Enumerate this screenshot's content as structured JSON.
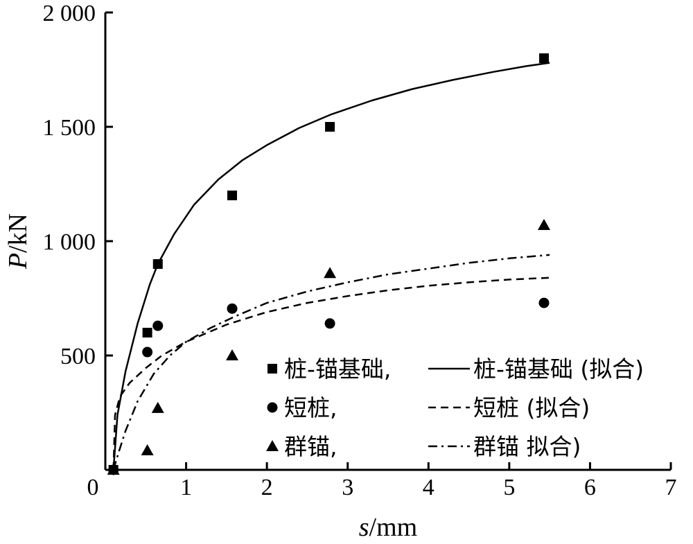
{
  "chart_data": {
    "type": "scatter",
    "xlabel": {
      "var": "s",
      "unit": "/mm"
    },
    "ylabel": {
      "var": "P",
      "unit": "/kN"
    },
    "xlim": [
      0,
      7
    ],
    "ylim": [
      0,
      2000
    ],
    "x_ticks": [
      0,
      1,
      2,
      3,
      4,
      5,
      6,
      7
    ],
    "x_tick_labels": [
      "0",
      "1",
      "2",
      "3",
      "4",
      "5",
      "6",
      "7"
    ],
    "y_ticks": [
      500,
      1000,
      1500,
      2000
    ],
    "y_tick_labels": [
      "500",
      "1 000",
      "1 500",
      "2 000"
    ],
    "grid": false,
    "legend_position": "bottom-right",
    "series": [
      {
        "name": "桩-锚基础,",
        "marker": "square",
        "x": [
          0.1,
          0.52,
          0.65,
          1.57,
          2.78,
          5.43
        ],
        "y": [
          0,
          600,
          900,
          1200,
          1500,
          1800
        ]
      },
      {
        "name": "短桩,",
        "marker": "circle",
        "x": [
          0.1,
          0.52,
          0.65,
          1.57,
          2.78,
          5.43
        ],
        "y": [
          0,
          515,
          630,
          705,
          640,
          730
        ]
      },
      {
        "name": "群锚,",
        "marker": "triangle",
        "x": [
          0.1,
          0.52,
          0.65,
          1.57,
          2.78,
          5.43
        ],
        "y": [
          0,
          85,
          270,
          500,
          860,
          1070
        ]
      }
    ],
    "fits": [
      {
        "name": "桩-锚基础 (拟合)",
        "style": "solid",
        "x": [
          0.1,
          0.15,
          0.25,
          0.4,
          0.55,
          0.65,
          0.85,
          1.1,
          1.4,
          1.7,
          2.0,
          2.4,
          2.8,
          3.3,
          3.8,
          4.3,
          4.8,
          5.2,
          5.5
        ],
        "y": [
          0,
          240,
          430,
          640,
          810,
          900,
          1030,
          1160,
          1270,
          1355,
          1420,
          1495,
          1555,
          1615,
          1665,
          1705,
          1740,
          1765,
          1780
        ]
      },
      {
        "name": "短桩 (拟合)",
        "style": "dashed",
        "x": [
          0.1,
          0.12,
          0.18,
          0.3,
          0.5,
          0.7,
          1.0,
          1.5,
          2.0,
          2.5,
          3.0,
          3.5,
          4.0,
          4.5,
          5.0,
          5.5
        ],
        "y": [
          0,
          240,
          320,
          380,
          445,
          500,
          560,
          635,
          690,
          730,
          760,
          785,
          805,
          820,
          832,
          840
        ]
      },
      {
        "name": "群锚  拟合)",
        "style": "dashdot",
        "x": [
          0.1,
          0.15,
          0.25,
          0.4,
          0.6,
          0.8,
          1.0,
          1.3,
          1.6,
          2.0,
          2.5,
          3.0,
          3.5,
          4.0,
          4.5,
          5.0,
          5.5
        ],
        "y": [
          0,
          60,
          170,
          300,
          420,
          500,
          560,
          620,
          670,
          730,
          780,
          820,
          855,
          880,
          905,
          925,
          940
        ]
      }
    ]
  }
}
